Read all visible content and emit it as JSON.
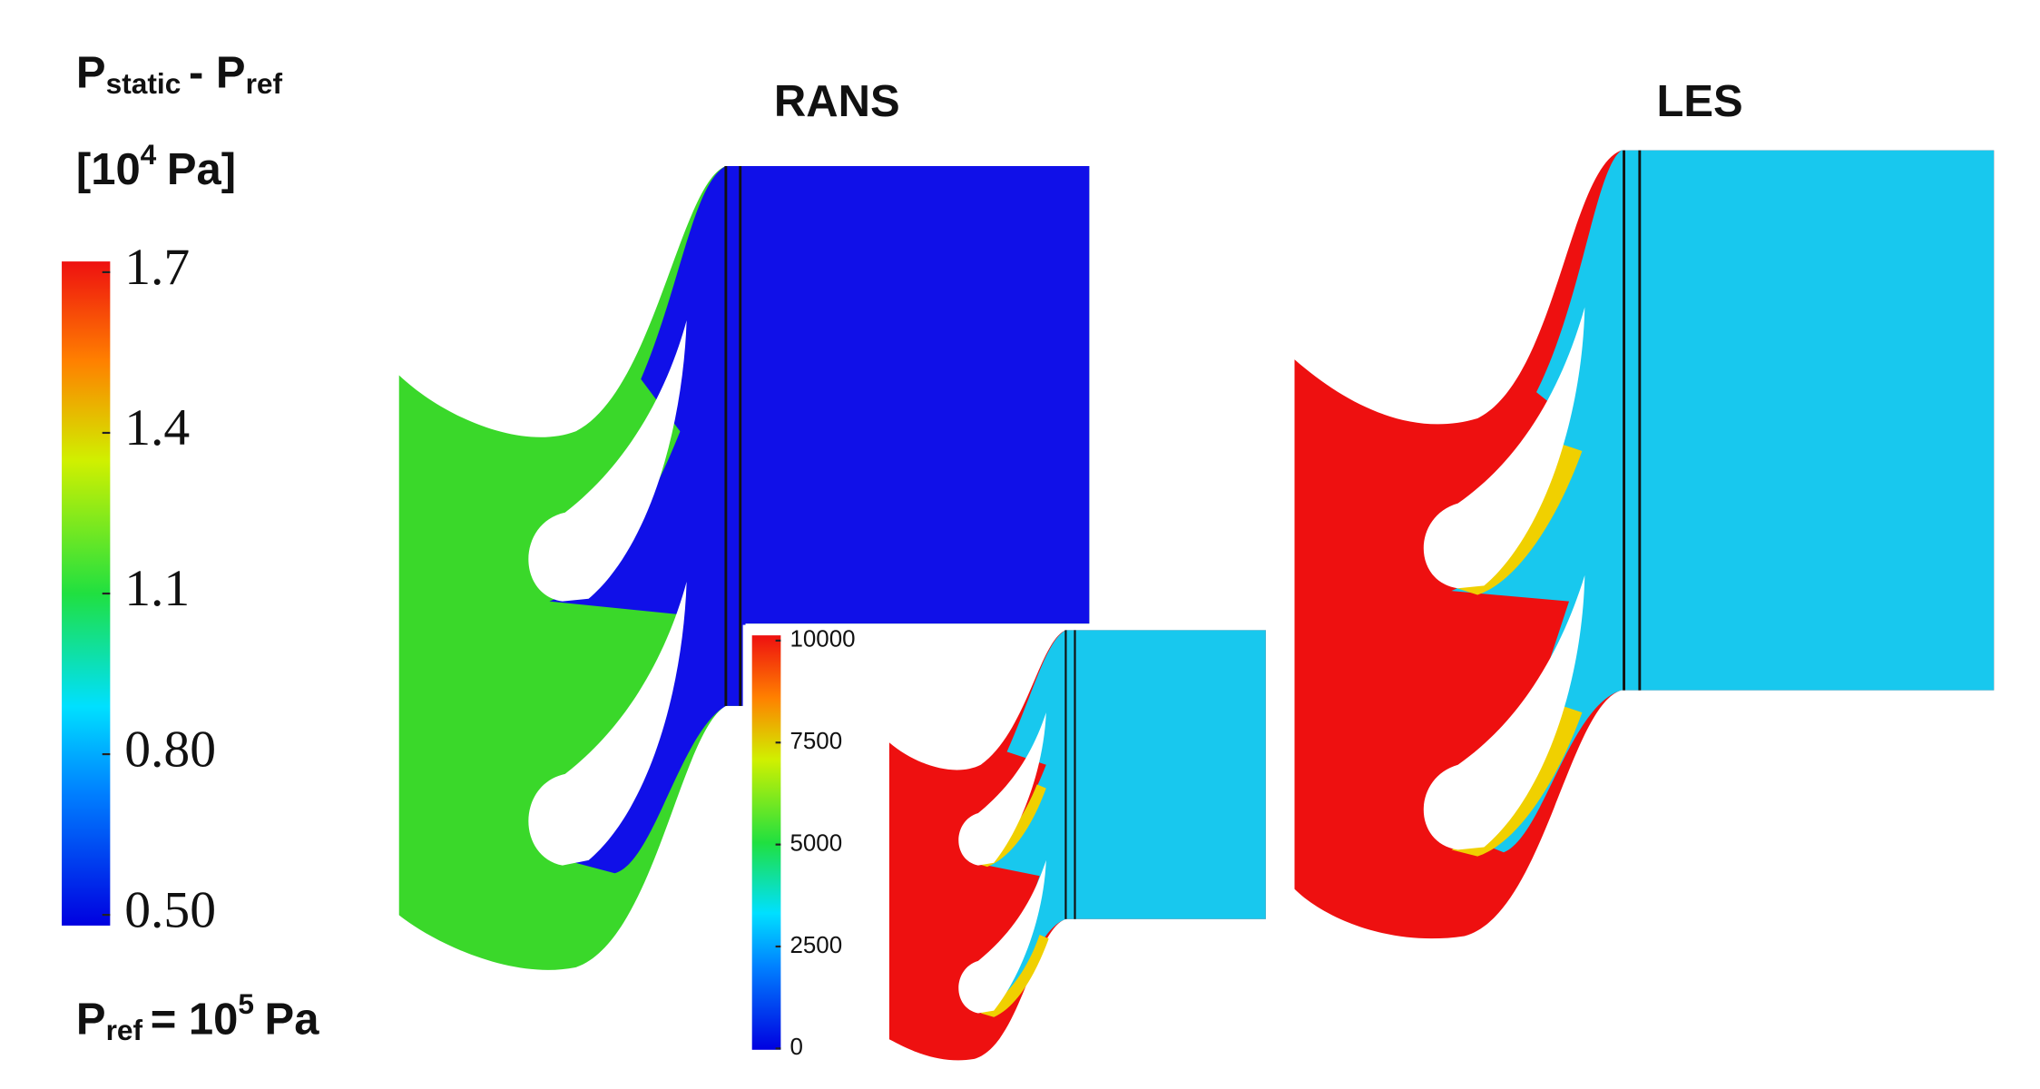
{
  "legend": {
    "title": {
      "p1": "P",
      "sub1": "static",
      "mid": "- P",
      "sub2": "ref"
    },
    "unit": {
      "open": "[10",
      "exp": "4",
      "rest": "Pa]"
    },
    "lim": [
      0.48,
      1.72
    ],
    "ticks": [
      1.7,
      1.4,
      1.1,
      {
        "value": 0.8,
        "label": "0.80"
      },
      {
        "value": 0.5,
        "label": "0.50"
      }
    ]
  },
  "panels": [
    {
      "title": "RANS"
    },
    {
      "title": "LES"
    }
  ],
  "inset_colorbar": {
    "lim": [
      0,
      10000
    ],
    "ticks": [
      10000,
      7500,
      5000,
      2500,
      0
    ]
  },
  "footnote": {
    "p": "P",
    "sub": "ref",
    "eq": "= 10",
    "exp": "5",
    "unit": "Pa"
  }
}
